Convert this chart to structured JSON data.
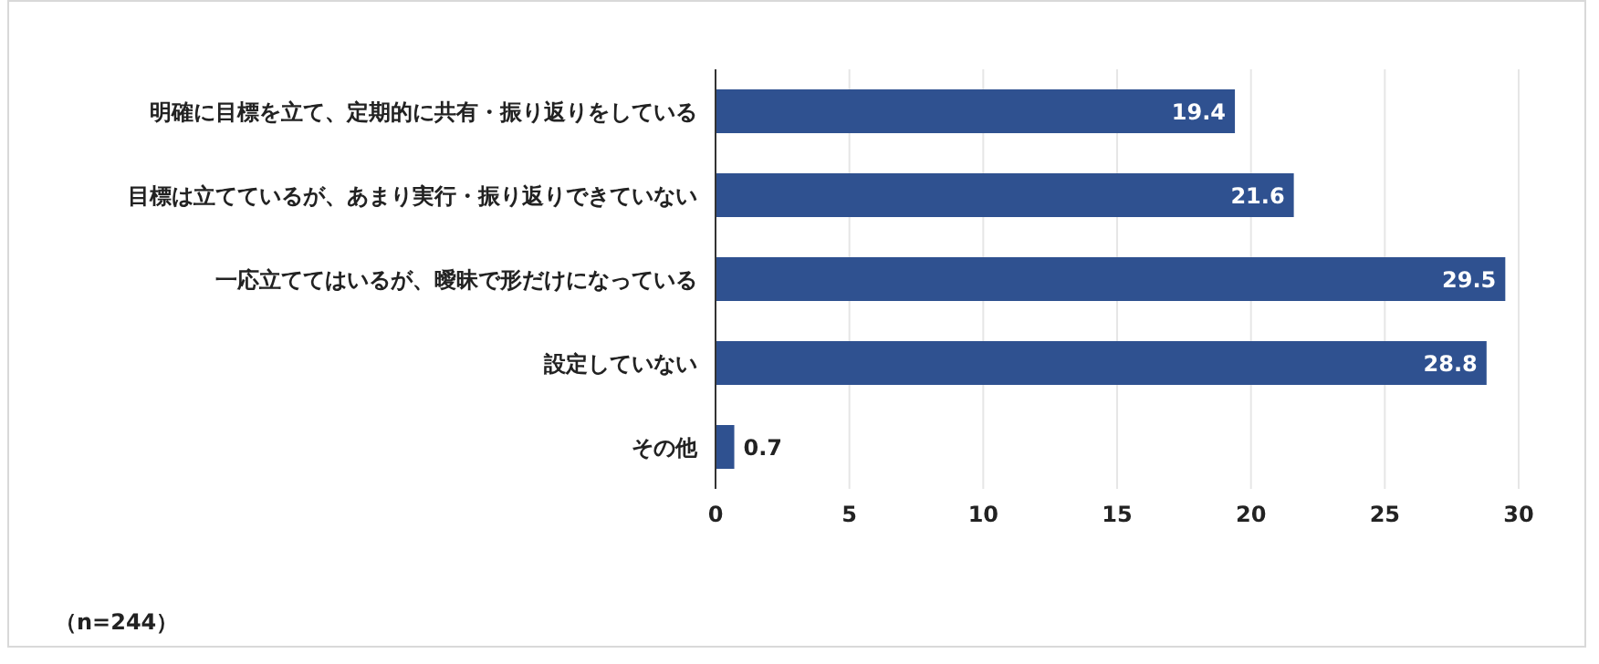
{
  "chart_data": {
    "type": "bar",
    "orientation": "horizontal",
    "categories": [
      "明確に目標を立て、定期的に共有・振り返りをしている",
      "目標は立てているが、あまり実行・振り返りできていない",
      "一応立ててはいるが、曖昧で形だけになっている",
      "設定していない",
      "その他"
    ],
    "values": [
      19.4,
      21.6,
      29.5,
      28.8,
      0.7
    ],
    "color": "#2f5190",
    "xlim": [
      0,
      30
    ],
    "xticks": [
      0,
      5,
      10,
      15,
      20,
      25,
      30
    ],
    "grid": "x",
    "data_labels": true,
    "annotations": [
      "（n=244）"
    ]
  }
}
